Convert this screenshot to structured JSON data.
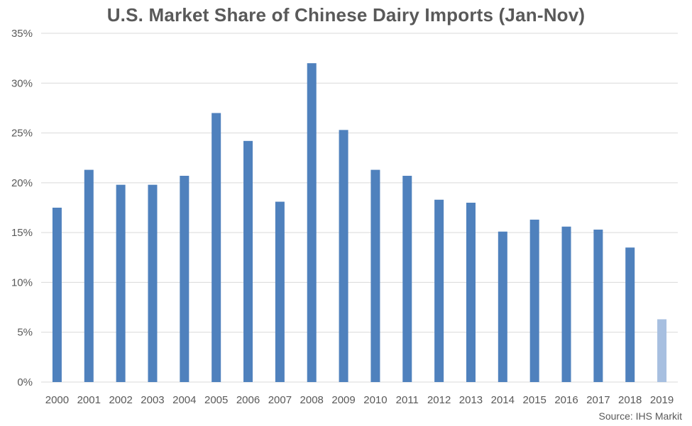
{
  "chart_data": {
    "type": "bar",
    "title": "U.S. Market Share of Chinese Dairy Imports (Jan-Nov)",
    "source": "Source: IHS Markit",
    "xlabel": "",
    "ylabel": "",
    "categories": [
      "2000",
      "2001",
      "2002",
      "2003",
      "2004",
      "2005",
      "2006",
      "2007",
      "2008",
      "2009",
      "2010",
      "2011",
      "2012",
      "2013",
      "2014",
      "2015",
      "2016",
      "2017",
      "2018",
      "2019"
    ],
    "values": [
      17.5,
      21.3,
      19.8,
      19.8,
      20.7,
      27.0,
      24.2,
      18.1,
      32.0,
      25.3,
      21.3,
      20.7,
      18.3,
      18.0,
      15.1,
      16.3,
      15.6,
      15.3,
      13.5,
      6.3
    ],
    "ylim": [
      0,
      35
    ],
    "yticks": [
      0,
      5,
      10,
      15,
      20,
      25,
      30,
      35
    ],
    "ytick_labels": [
      "0%",
      "5%",
      "10%",
      "15%",
      "20%",
      "25%",
      "30%",
      "35%"
    ],
    "grid": true,
    "bar_color": "#4f81bd",
    "highlight_color": "#a7bfe0",
    "highlight_index": 19
  }
}
